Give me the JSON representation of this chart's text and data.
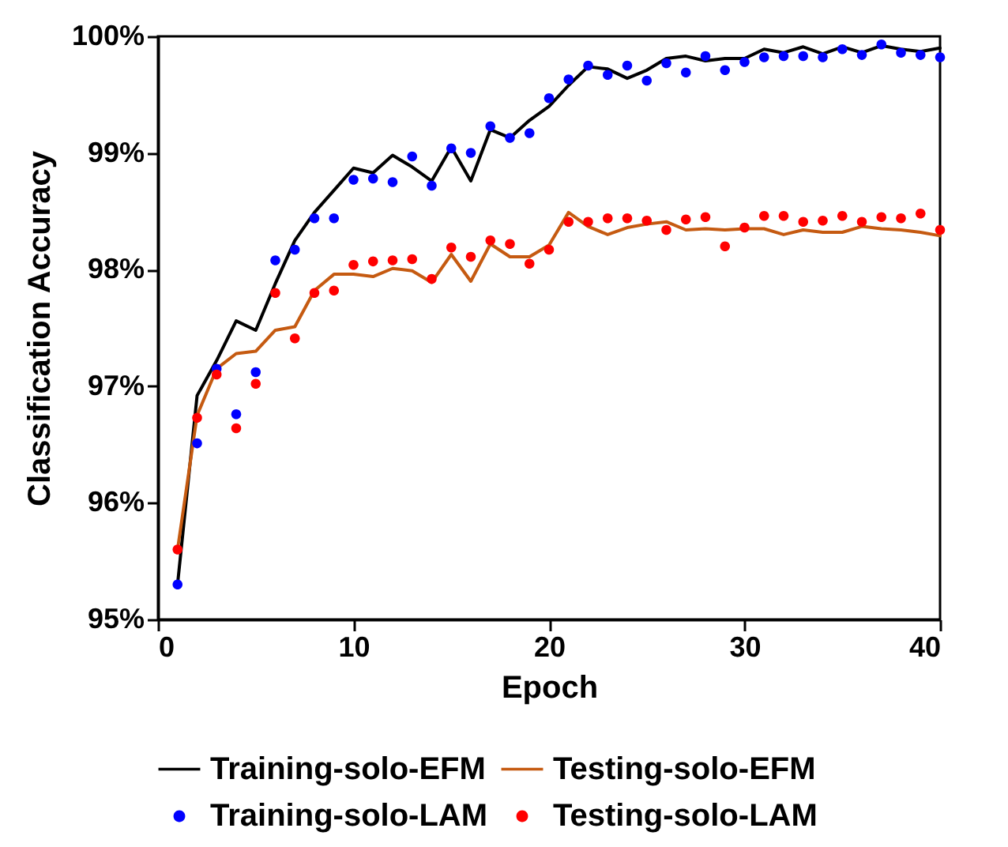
{
  "chart_data": {
    "type": "line",
    "xlabel": "Epoch",
    "ylabel": "Classification Accuracy",
    "x": [
      1,
      2,
      3,
      4,
      5,
      6,
      7,
      8,
      9,
      10,
      11,
      12,
      13,
      14,
      15,
      16,
      17,
      18,
      19,
      20,
      21,
      22,
      23,
      24,
      25,
      26,
      27,
      28,
      29,
      30,
      31,
      32,
      33,
      34,
      35,
      36,
      37,
      38,
      39,
      40
    ],
    "series": [
      {
        "name": "Training-solo-EFM",
        "type": "line",
        "color": "#000000",
        "values": [
          95.3,
          96.92,
          97.22,
          97.56,
          97.48,
          97.88,
          98.25,
          98.49,
          98.68,
          98.87,
          98.83,
          98.98,
          98.88,
          98.76,
          99.05,
          98.76,
          99.2,
          99.13,
          99.28,
          99.4,
          99.58,
          99.74,
          99.72,
          99.64,
          99.71,
          99.81,
          99.83,
          99.79,
          99.81,
          99.81,
          99.89,
          99.86,
          99.91,
          99.85,
          99.91,
          99.86,
          99.92,
          99.89,
          99.87,
          99.9
        ]
      },
      {
        "name": "Testing-solo-EFM",
        "type": "line",
        "color": "#c55a11",
        "values": [
          95.6,
          96.75,
          97.15,
          97.28,
          97.3,
          97.48,
          97.51,
          97.82,
          97.96,
          97.96,
          97.94,
          98.01,
          97.99,
          97.89,
          98.13,
          97.9,
          98.22,
          98.11,
          98.11,
          98.21,
          98.49,
          98.37,
          98.3,
          98.36,
          98.39,
          98.41,
          98.34,
          98.35,
          98.34,
          98.35,
          98.35,
          98.3,
          98.34,
          98.32,
          98.32,
          98.37,
          98.35,
          98.34,
          98.32,
          98.29
        ]
      },
      {
        "name": "Training-solo-LAM",
        "type": "scatter",
        "color": "#0000ff",
        "values": [
          95.3,
          96.51,
          97.15,
          96.76,
          97.12,
          98.08,
          98.17,
          98.44,
          98.44,
          98.77,
          98.78,
          98.75,
          98.97,
          98.72,
          99.04,
          99.0,
          99.23,
          99.13,
          99.17,
          99.47,
          99.63,
          99.75,
          99.67,
          99.75,
          99.62,
          99.77,
          99.69,
          99.83,
          99.71,
          99.78,
          99.82,
          99.83,
          99.83,
          99.82,
          99.89,
          99.84,
          99.93,
          99.86,
          99.84,
          99.82
        ]
      },
      {
        "name": "Testing-solo-LAM",
        "type": "scatter",
        "color": "#ff0000",
        "values": [
          95.6,
          96.73,
          97.1,
          96.64,
          97.02,
          97.8,
          97.41,
          97.8,
          97.82,
          98.04,
          98.07,
          98.08,
          98.09,
          97.92,
          98.19,
          98.11,
          98.25,
          98.22,
          98.05,
          98.17,
          98.41,
          98.41,
          98.44,
          98.44,
          98.42,
          98.34,
          98.43,
          98.45,
          98.2,
          98.36,
          98.46,
          98.46,
          98.41,
          98.42,
          98.46,
          98.41,
          98.45,
          98.44,
          98.48,
          98.34
        ]
      }
    ],
    "xlim": [
      0,
      40
    ],
    "xticks": [
      0,
      10,
      20,
      30,
      40
    ],
    "ylim": [
      95,
      100
    ],
    "yticks": [
      {
        "value": 95,
        "label": "95%"
      },
      {
        "value": 96,
        "label": "96%"
      },
      {
        "value": 97,
        "label": "97%"
      },
      {
        "value": 98,
        "label": "98%"
      },
      {
        "value": 99,
        "label": "99%"
      },
      {
        "value": 100,
        "label": "100%"
      }
    ],
    "grid": false,
    "legend": "bottom"
  }
}
